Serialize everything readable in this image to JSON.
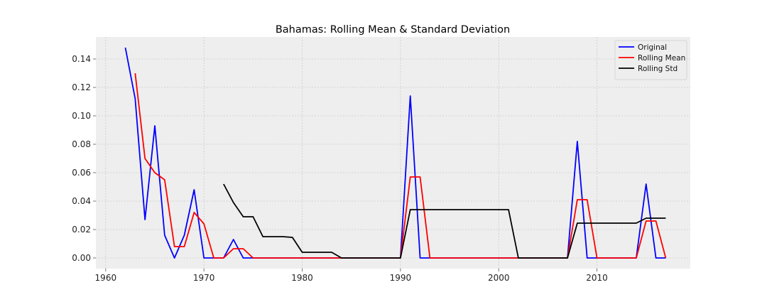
{
  "chart_data": {
    "type": "line",
    "title": "Bahamas: Rolling Mean & Standard Deviation",
    "xlabel": "",
    "ylabel": "",
    "xlim": [
      1959,
      2019.5
    ],
    "ylim": [
      -0.0075,
      0.1555
    ],
    "x_ticks": [
      1960,
      1970,
      1980,
      1990,
      2000,
      2010
    ],
    "y_ticks": [
      0.0,
      0.02,
      0.04,
      0.06,
      0.08,
      0.1,
      0.12,
      0.14
    ],
    "y_tick_labels": [
      "0.00",
      "0.02",
      "0.04",
      "0.06",
      "0.08",
      "0.10",
      "0.12",
      "0.14"
    ],
    "grid": true,
    "legend_position": "top-right",
    "series": [
      {
        "name": "Original",
        "color": "#0000ff",
        "x": [
          1962,
          1963,
          1964,
          1965,
          1966,
          1967,
          1968,
          1969,
          1970,
          1971,
          1972,
          1973,
          1974,
          1975,
          1976,
          1977,
          1978,
          1979,
          1980,
          1981,
          1982,
          1983,
          1984,
          1985,
          1986,
          1987,
          1988,
          1989,
          1990,
          1991,
          1992,
          1993,
          1994,
          1995,
          1996,
          1997,
          1998,
          1999,
          2000,
          2001,
          2002,
          2003,
          2004,
          2005,
          2006,
          2007,
          2008,
          2009,
          2010,
          2011,
          2012,
          2013,
          2014,
          2015,
          2016,
          2017
        ],
        "values": [
          0.148,
          0.112,
          0.027,
          0.093,
          0.016,
          0.0,
          0.016,
          0.048,
          0.0,
          0.0,
          0.0,
          0.013,
          0.0,
          0.0,
          0.0,
          0.0,
          0.0,
          0.0,
          0.0,
          0.0,
          0.0,
          0.0,
          0.0,
          0.0,
          0.0,
          0.0,
          0.0,
          0.0,
          0.0,
          0.114,
          0.0,
          0.0,
          0.0,
          0.0,
          0.0,
          0.0,
          0.0,
          0.0,
          0.0,
          0.0,
          0.0,
          0.0,
          0.0,
          0.0,
          0.0,
          0.0,
          0.082,
          0.0,
          0.0,
          0.0,
          0.0,
          0.0,
          0.0,
          0.052,
          0.0,
          0.0
        ]
      },
      {
        "name": "Rolling Mean",
        "color": "#ff0000",
        "x": [
          1963,
          1964,
          1965,
          1966,
          1967,
          1968,
          1969,
          1970,
          1971,
          1972,
          1973,
          1974,
          1975,
          1976,
          1977,
          1978,
          1979,
          1980,
          1981,
          1982,
          1983,
          1984,
          1985,
          1986,
          1987,
          1988,
          1989,
          1990,
          1991,
          1992,
          1993,
          1994,
          1995,
          1996,
          1997,
          1998,
          1999,
          2000,
          2001,
          2002,
          2003,
          2004,
          2005,
          2006,
          2007,
          2008,
          2009,
          2010,
          2011,
          2012,
          2013,
          2014,
          2015,
          2016,
          2017
        ],
        "values": [
          0.13,
          0.07,
          0.06,
          0.055,
          0.008,
          0.008,
          0.032,
          0.024,
          0.0,
          0.0,
          0.0065,
          0.0065,
          0.0,
          0.0,
          0.0,
          0.0,
          0.0,
          0.0,
          0.0,
          0.0,
          0.0,
          0.0,
          0.0,
          0.0,
          0.0,
          0.0,
          0.0,
          0.0,
          0.057,
          0.057,
          0.0,
          0.0,
          0.0,
          0.0,
          0.0,
          0.0,
          0.0,
          0.0,
          0.0,
          0.0,
          0.0,
          0.0,
          0.0,
          0.0,
          0.0,
          0.041,
          0.041,
          0.0,
          0.0,
          0.0,
          0.0,
          0.0,
          0.026,
          0.026,
          0.0
        ]
      },
      {
        "name": "Rolling Std",
        "color": "#000000",
        "x": [
          1972,
          1973,
          1974,
          1975,
          1976,
          1977,
          1978,
          1979,
          1980,
          1981,
          1982,
          1983,
          1984,
          1985,
          1986,
          1987,
          1988,
          1989,
          1990,
          1991,
          1992,
          1993,
          1994,
          1995,
          1996,
          1997,
          1998,
          1999,
          2000,
          2001,
          2002,
          2003,
          2004,
          2005,
          2006,
          2007,
          2008,
          2009,
          2010,
          2011,
          2012,
          2013,
          2014,
          2015,
          2016,
          2017
        ],
        "values": [
          0.052,
          0.039,
          0.029,
          0.029,
          0.015,
          0.015,
          0.015,
          0.0145,
          0.004,
          0.004,
          0.004,
          0.004,
          0.0,
          0.0,
          0.0,
          0.0,
          0.0,
          0.0,
          0.0,
          0.034,
          0.034,
          0.034,
          0.034,
          0.034,
          0.034,
          0.034,
          0.034,
          0.034,
          0.034,
          0.034,
          0.0,
          0.0,
          0.0,
          0.0,
          0.0,
          0.0,
          0.0245,
          0.0245,
          0.0245,
          0.0245,
          0.0245,
          0.0245,
          0.0245,
          0.028,
          0.028,
          0.028
        ]
      }
    ]
  },
  "colors": {
    "plot_background": "#eeeeee",
    "grid": "#cbcbcb",
    "page_background": "#ffffff"
  }
}
